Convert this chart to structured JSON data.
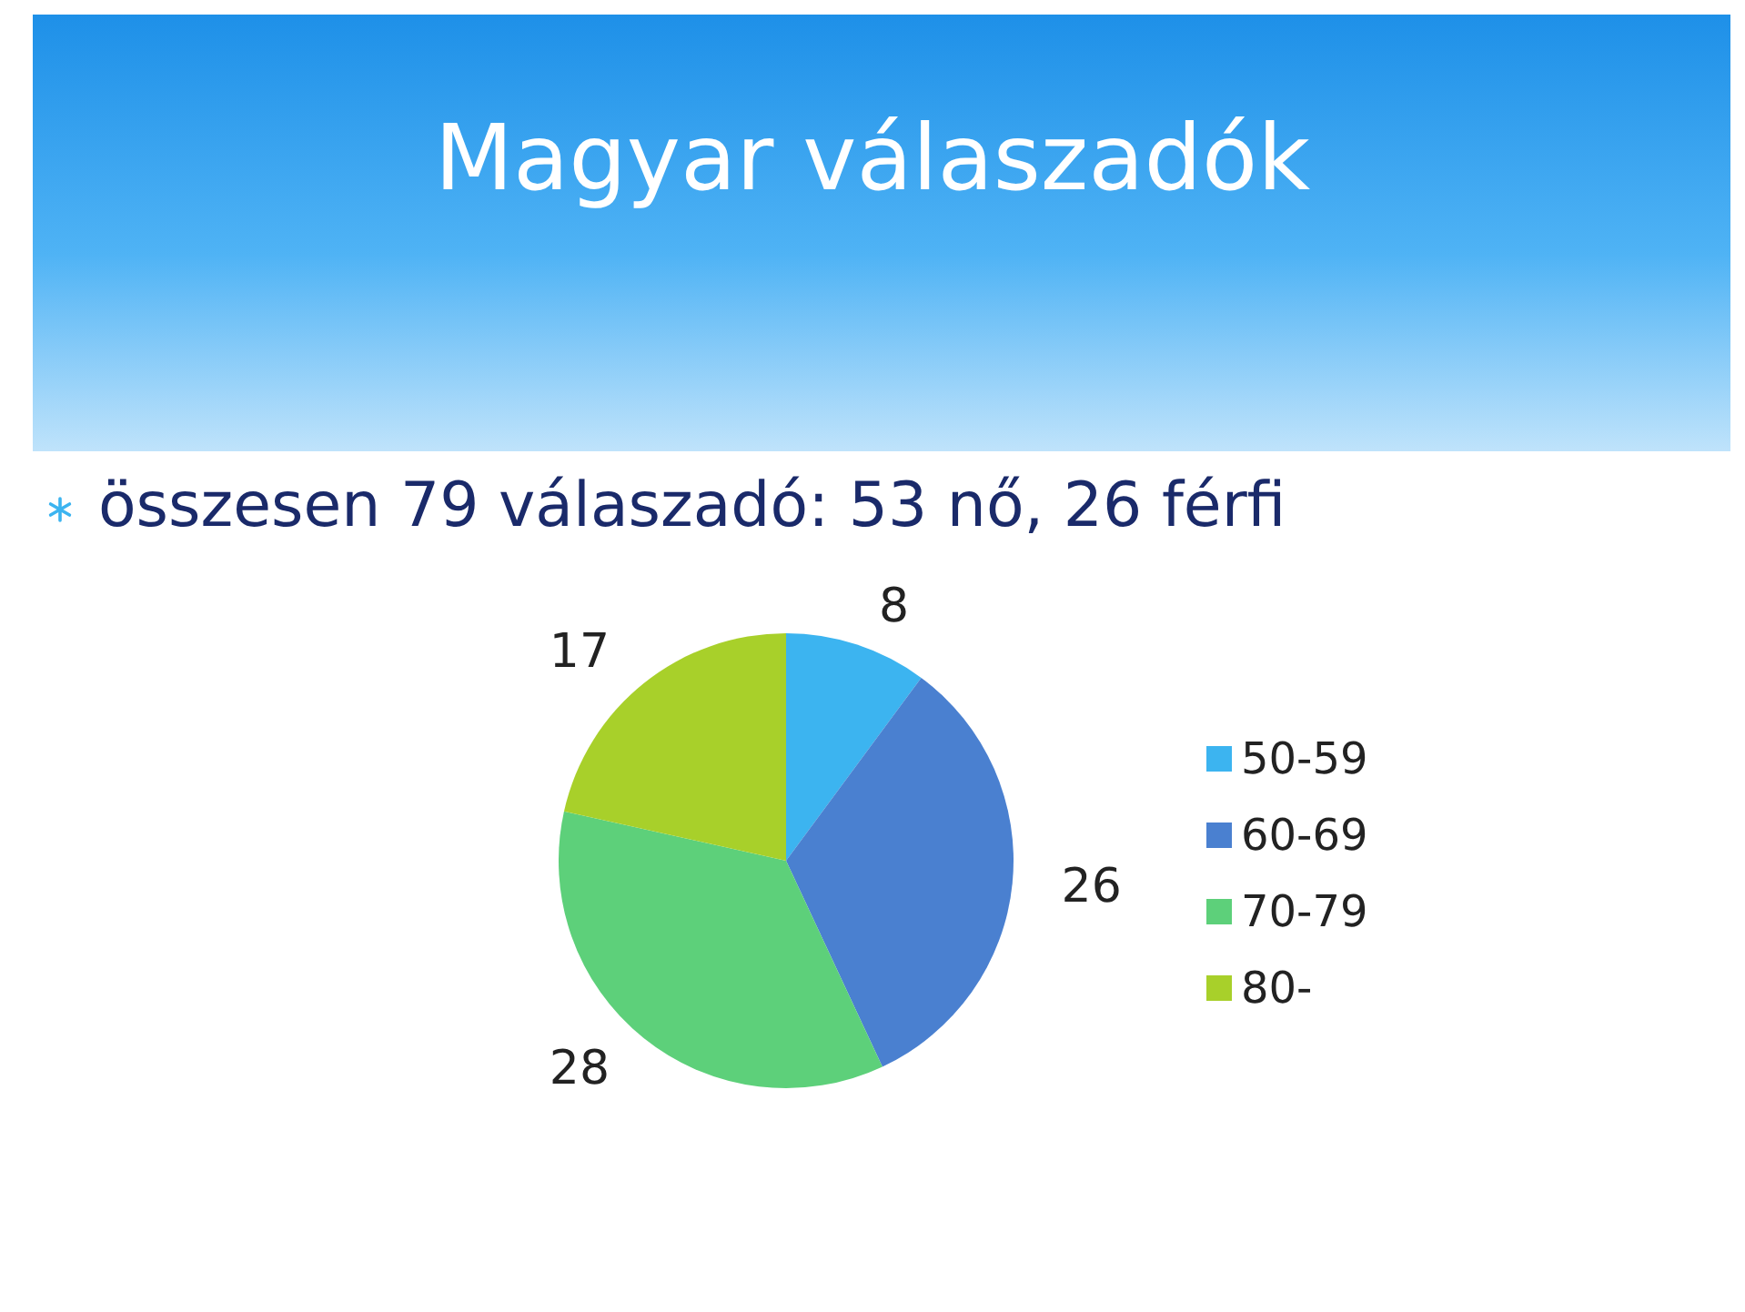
{
  "chart_data": {
    "type": "pie",
    "title": "Magyar válaszadók",
    "subtitle": "összesen 79 válaszadó: 53 nő, 26 férfi",
    "categories": [
      "50-59",
      "60-69",
      "70-79",
      "80-"
    ],
    "values": [
      8,
      26,
      28,
      17
    ],
    "colors": [
      "#3cb4f0",
      "#4a80d0",
      "#5dd07a",
      "#a8d02a"
    ],
    "data_labels": true,
    "legend": "right"
  }
}
